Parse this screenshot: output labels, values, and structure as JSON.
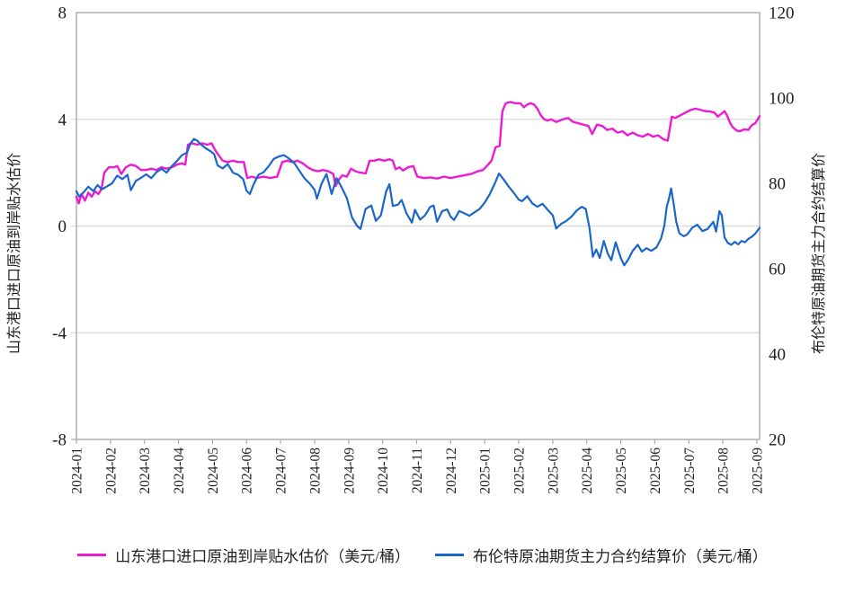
{
  "style": {
    "background": "#ffffff",
    "grid_color": "#d9d9d9",
    "axis_color": "#ababab",
    "text_color": "#1f1f1f",
    "series1_color": "#ed1bd2",
    "series2_color": "#1b66c9"
  },
  "chart_data": {
    "type": "line",
    "title": "",
    "x_axis": {
      "unit": "month",
      "tick_labels": [
        "2024-01",
        "2024-02",
        "2024-03",
        "2024-04",
        "2024-05",
        "2024-06",
        "2024-07",
        "2024-08",
        "2024-09",
        "2024-10",
        "2024-11",
        "2024-12",
        "2025-01",
        "2025-02",
        "2025-03",
        "2025-04",
        "2025-05",
        "2025-06",
        "2025-07",
        "2025-08",
        "2025-09"
      ],
      "label_rotation_deg": -90
    },
    "left_axis": {
      "title": "山东港口进口原油到岸贴水估价",
      "min": -8,
      "max": 8,
      "ticks": [
        8,
        4,
        0,
        -4,
        -8
      ]
    },
    "right_axis": {
      "title": "布伦特原油期货主力合约结算价",
      "min": 20,
      "max": 120,
      "ticks": [
        120,
        100,
        80,
        60,
        40,
        20
      ]
    },
    "gridlines_left_values": [
      4,
      0,
      -4
    ],
    "legend_position": "bottom",
    "series": [
      {
        "name": "山东港口进口原油到岸贴水估价（美元/桶）",
        "axis": "left",
        "color": "#ed1bd2",
        "points": [
          [
            0,
            1.1
          ],
          [
            0.07,
            0.85
          ],
          [
            0.15,
            1.2
          ],
          [
            0.25,
            0.95
          ],
          [
            0.35,
            1.25
          ],
          [
            0.45,
            1.1
          ],
          [
            0.55,
            1.3
          ],
          [
            0.65,
            1.2
          ],
          [
            0.74,
            1.4
          ],
          [
            0.82,
            2.0
          ],
          [
            0.95,
            2.2
          ],
          [
            1.1,
            2.2
          ],
          [
            1.2,
            2.25
          ],
          [
            1.32,
            1.95
          ],
          [
            1.45,
            2.2
          ],
          [
            1.6,
            2.3
          ],
          [
            1.75,
            2.25
          ],
          [
            1.9,
            2.1
          ],
          [
            2.05,
            2.1
          ],
          [
            2.2,
            2.15
          ],
          [
            2.35,
            2.1
          ],
          [
            2.5,
            2.2
          ],
          [
            2.65,
            2.15
          ],
          [
            2.8,
            2.2
          ],
          [
            2.95,
            2.3
          ],
          [
            3.1,
            2.35
          ],
          [
            3.2,
            2.3
          ],
          [
            3.28,
            3.05
          ],
          [
            3.4,
            3.1
          ],
          [
            3.55,
            3.05
          ],
          [
            3.7,
            3.1
          ],
          [
            3.85,
            3.05
          ],
          [
            3.97,
            3.1
          ],
          [
            4.1,
            2.8
          ],
          [
            4.3,
            2.45
          ],
          [
            4.45,
            2.4
          ],
          [
            4.6,
            2.45
          ],
          [
            4.75,
            2.4
          ],
          [
            4.92,
            2.4
          ],
          [
            5.02,
            1.8
          ],
          [
            5.15,
            1.85
          ],
          [
            5.3,
            1.8
          ],
          [
            5.5,
            1.85
          ],
          [
            5.7,
            1.8
          ],
          [
            5.9,
            1.85
          ],
          [
            6.05,
            2.4
          ],
          [
            6.2,
            2.45
          ],
          [
            6.35,
            2.4
          ],
          [
            6.5,
            2.45
          ],
          [
            6.65,
            2.35
          ],
          [
            6.8,
            2.2
          ],
          [
            6.95,
            2.1
          ],
          [
            7.1,
            2.05
          ],
          [
            7.25,
            2.1
          ],
          [
            7.4,
            2.05
          ],
          [
            7.55,
            1.95
          ],
          [
            7.62,
            1.5
          ],
          [
            7.72,
            1.75
          ],
          [
            7.82,
            1.9
          ],
          [
            7.95,
            1.85
          ],
          [
            8.07,
            2.15
          ],
          [
            8.2,
            2.05
          ],
          [
            8.35,
            2.0
          ],
          [
            8.5,
            1.97
          ],
          [
            8.62,
            2.45
          ],
          [
            8.75,
            2.45
          ],
          [
            8.9,
            2.5
          ],
          [
            9.05,
            2.45
          ],
          [
            9.2,
            2.5
          ],
          [
            9.3,
            2.45
          ],
          [
            9.38,
            2.13
          ],
          [
            9.5,
            2.2
          ],
          [
            9.6,
            2.08
          ],
          [
            9.75,
            2.2
          ],
          [
            9.9,
            2.25
          ],
          [
            10.02,
            1.85
          ],
          [
            10.2,
            1.8
          ],
          [
            10.4,
            1.82
          ],
          [
            10.6,
            1.78
          ],
          [
            10.8,
            1.85
          ],
          [
            11.0,
            1.8
          ],
          [
            11.2,
            1.85
          ],
          [
            11.4,
            1.9
          ],
          [
            11.6,
            1.95
          ],
          [
            11.8,
            2.05
          ],
          [
            11.95,
            2.1
          ],
          [
            12.1,
            2.3
          ],
          [
            12.2,
            2.45
          ],
          [
            12.32,
            2.95
          ],
          [
            12.44,
            3.0
          ],
          [
            12.52,
            4.3
          ],
          [
            12.62,
            4.6
          ],
          [
            12.75,
            4.65
          ],
          [
            12.9,
            4.6
          ],
          [
            13.05,
            4.6
          ],
          [
            13.15,
            4.45
          ],
          [
            13.25,
            4.55
          ],
          [
            13.35,
            4.6
          ],
          [
            13.45,
            4.55
          ],
          [
            13.55,
            4.4
          ],
          [
            13.65,
            4.15
          ],
          [
            13.75,
            4.0
          ],
          [
            13.85,
            3.95
          ],
          [
            13.95,
            4.0
          ],
          [
            14.1,
            3.9
          ],
          [
            14.2,
            3.95
          ],
          [
            14.3,
            4.0
          ],
          [
            14.45,
            4.05
          ],
          [
            14.6,
            3.9
          ],
          [
            14.75,
            3.85
          ],
          [
            14.9,
            3.8
          ],
          [
            15.05,
            3.75
          ],
          [
            15.16,
            3.45
          ],
          [
            15.3,
            3.8
          ],
          [
            15.46,
            3.75
          ],
          [
            15.6,
            3.6
          ],
          [
            15.75,
            3.65
          ],
          [
            15.9,
            3.5
          ],
          [
            16.05,
            3.55
          ],
          [
            16.2,
            3.4
          ],
          [
            16.35,
            3.5
          ],
          [
            16.5,
            3.4
          ],
          [
            16.65,
            3.35
          ],
          [
            16.8,
            3.45
          ],
          [
            16.95,
            3.35
          ],
          [
            17.1,
            3.4
          ],
          [
            17.25,
            3.25
          ],
          [
            17.38,
            3.2
          ],
          [
            17.5,
            4.1
          ],
          [
            17.6,
            4.05
          ],
          [
            17.75,
            4.15
          ],
          [
            17.9,
            4.25
          ],
          [
            18.05,
            4.35
          ],
          [
            18.2,
            4.4
          ],
          [
            18.35,
            4.35
          ],
          [
            18.5,
            4.3
          ],
          [
            18.6,
            4.3
          ],
          [
            18.75,
            4.25
          ],
          [
            18.85,
            4.1
          ],
          [
            18.95,
            4.2
          ],
          [
            19.05,
            4.3
          ],
          [
            19.12,
            4.15
          ],
          [
            19.2,
            3.9
          ],
          [
            19.28,
            3.72
          ],
          [
            19.4,
            3.58
          ],
          [
            19.5,
            3.55
          ],
          [
            19.62,
            3.62
          ],
          [
            19.75,
            3.6
          ],
          [
            19.85,
            3.78
          ],
          [
            19.95,
            3.85
          ],
          [
            20.08,
            4.12
          ]
        ]
      },
      {
        "name": "布伦特原油期货主力合约结算价（美元/桶）",
        "axis": "right",
        "color": "#1b66c9",
        "points": [
          [
            0,
            78.2
          ],
          [
            0.08,
            76.9
          ],
          [
            0.2,
            77.8
          ],
          [
            0.35,
            79.2
          ],
          [
            0.5,
            78.2
          ],
          [
            0.62,
            79.6
          ],
          [
            0.75,
            78.6
          ],
          [
            0.9,
            79.3
          ],
          [
            1.05,
            80
          ],
          [
            1.2,
            81.8
          ],
          [
            1.35,
            81
          ],
          [
            1.5,
            82
          ],
          [
            1.6,
            78.4
          ],
          [
            1.75,
            80.6
          ],
          [
            1.9,
            81.3
          ],
          [
            2.05,
            82.1
          ],
          [
            2.2,
            81.2
          ],
          [
            2.35,
            82.6
          ],
          [
            2.5,
            83.4
          ],
          [
            2.65,
            82.5
          ],
          [
            2.8,
            84
          ],
          [
            2.95,
            85.2
          ],
          [
            3.1,
            86.6
          ],
          [
            3.25,
            87.2
          ],
          [
            3.35,
            89.3
          ],
          [
            3.45,
            90.4
          ],
          [
            3.55,
            90
          ],
          [
            3.65,
            89.2
          ],
          [
            3.8,
            88.2
          ],
          [
            3.95,
            87.5
          ],
          [
            4.05,
            86.8
          ],
          [
            4.15,
            84.2
          ],
          [
            4.3,
            83.5
          ],
          [
            4.45,
            84.5
          ],
          [
            4.6,
            82.5
          ],
          [
            4.75,
            82
          ],
          [
            4.9,
            81
          ],
          [
            5.0,
            78.3
          ],
          [
            5.1,
            77.5
          ],
          [
            5.2,
            79.6
          ],
          [
            5.35,
            82
          ],
          [
            5.5,
            82.6
          ],
          [
            5.65,
            84
          ],
          [
            5.8,
            85.7
          ],
          [
            5.95,
            86.3
          ],
          [
            6.1,
            86.6
          ],
          [
            6.25,
            85.8
          ],
          [
            6.4,
            84.8
          ],
          [
            6.55,
            83
          ],
          [
            6.7,
            81.2
          ],
          [
            6.85,
            80
          ],
          [
            7.0,
            78.5
          ],
          [
            7.07,
            76.4
          ],
          [
            7.2,
            79.8
          ],
          [
            7.35,
            82.2
          ],
          [
            7.5,
            77.5
          ],
          [
            7.65,
            81.2
          ],
          [
            7.8,
            79
          ],
          [
            7.95,
            76.5
          ],
          [
            8.1,
            72
          ],
          [
            8.25,
            70
          ],
          [
            8.35,
            69.3
          ],
          [
            8.5,
            74
          ],
          [
            8.67,
            74.8
          ],
          [
            8.8,
            71.2
          ],
          [
            8.95,
            72.5
          ],
          [
            9.1,
            78
          ],
          [
            9.2,
            79.8
          ],
          [
            9.3,
            74.7
          ],
          [
            9.45,
            75
          ],
          [
            9.56,
            76.1
          ],
          [
            9.7,
            73
          ],
          [
            9.86,
            70.8
          ],
          [
            9.95,
            73.8
          ],
          [
            10.1,
            71.5
          ],
          [
            10.25,
            72.5
          ],
          [
            10.4,
            74.5
          ],
          [
            10.5,
            74.8
          ],
          [
            10.6,
            71
          ],
          [
            10.75,
            73.5
          ],
          [
            10.9,
            73.9
          ],
          [
            11.0,
            72.2
          ],
          [
            11.1,
            71.4
          ],
          [
            11.25,
            73.5
          ],
          [
            11.4,
            73
          ],
          [
            11.55,
            72.4
          ],
          [
            11.7,
            73.2
          ],
          [
            11.85,
            74
          ],
          [
            12.0,
            75.5
          ],
          [
            12.15,
            77.5
          ],
          [
            12.3,
            80
          ],
          [
            12.42,
            82.3
          ],
          [
            12.55,
            81
          ],
          [
            12.7,
            79.3
          ],
          [
            12.85,
            77.8
          ],
          [
            13.0,
            76.2
          ],
          [
            13.1,
            75.8
          ],
          [
            13.25,
            77
          ],
          [
            13.4,
            75.3
          ],
          [
            13.55,
            74.5
          ],
          [
            13.7,
            75.2
          ],
          [
            13.85,
            73.8
          ],
          [
            14.0,
            72.5
          ],
          [
            14.1,
            69.4
          ],
          [
            14.25,
            70.5
          ],
          [
            14.4,
            71.2
          ],
          [
            14.55,
            72.2
          ],
          [
            14.7,
            73.6
          ],
          [
            14.85,
            74.5
          ],
          [
            14.97,
            74
          ],
          [
            15.08,
            69.5
          ],
          [
            15.18,
            62.8
          ],
          [
            15.28,
            64.5
          ],
          [
            15.38,
            62.5
          ],
          [
            15.5,
            66.5
          ],
          [
            15.62,
            63.5
          ],
          [
            15.72,
            62
          ],
          [
            15.85,
            66.2
          ],
          [
            16.0,
            62.5
          ],
          [
            16.1,
            60.8
          ],
          [
            16.22,
            62.2
          ],
          [
            16.35,
            64.2
          ],
          [
            16.5,
            65.6
          ],
          [
            16.62,
            64
          ],
          [
            16.75,
            64.8
          ],
          [
            16.9,
            64.2
          ],
          [
            17.05,
            65
          ],
          [
            17.18,
            67
          ],
          [
            17.28,
            70
          ],
          [
            17.35,
            74.5
          ],
          [
            17.42,
            76.5
          ],
          [
            17.48,
            78.8
          ],
          [
            17.55,
            75.5
          ],
          [
            17.63,
            71
          ],
          [
            17.72,
            68.3
          ],
          [
            17.85,
            67.6
          ],
          [
            17.95,
            68
          ],
          [
            18.1,
            69.6
          ],
          [
            18.25,
            70.3
          ],
          [
            18.4,
            68.8
          ],
          [
            18.55,
            69.3
          ],
          [
            18.72,
            71
          ],
          [
            18.8,
            68.7
          ],
          [
            18.9,
            73.5
          ],
          [
            18.97,
            72.5
          ],
          [
            19.05,
            67.3
          ],
          [
            19.15,
            66
          ],
          [
            19.25,
            65.6
          ],
          [
            19.35,
            66.3
          ],
          [
            19.45,
            65.7
          ],
          [
            19.55,
            66.5
          ],
          [
            19.65,
            66.2
          ],
          [
            19.75,
            67
          ],
          [
            19.85,
            67.5
          ],
          [
            19.95,
            68.2
          ],
          [
            20.08,
            69.6
          ]
        ]
      }
    ]
  }
}
